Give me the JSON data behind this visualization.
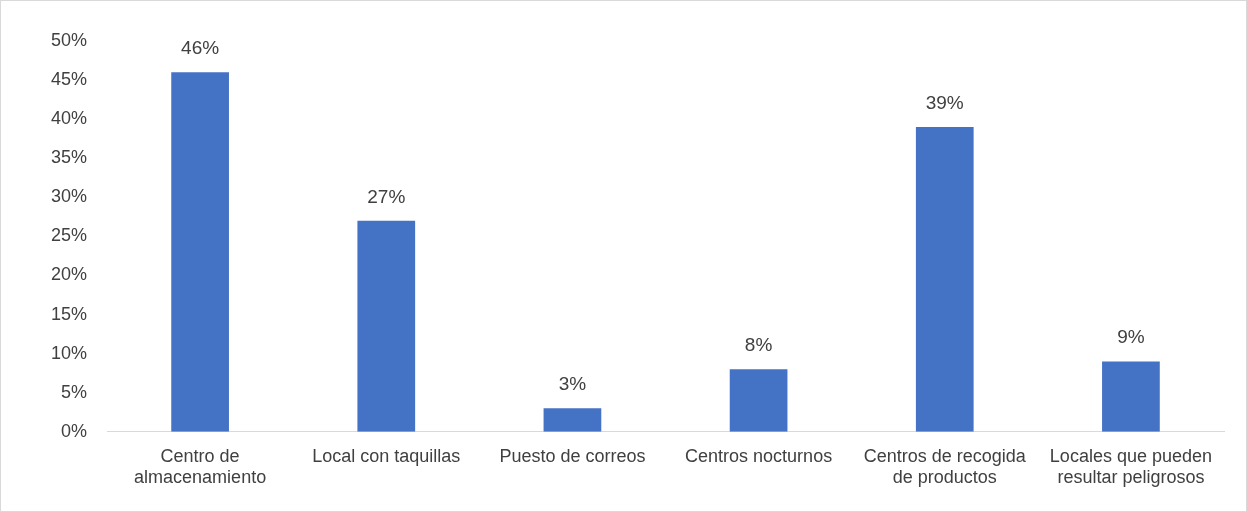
{
  "chart_data": {
    "type": "bar",
    "categories": [
      "Centro de almacenamiento",
      "Local con taquillas",
      "Puesto de correos",
      "Centros nocturnos",
      "Centros de recogida de productos",
      "Locales que pueden resultar peligrosos"
    ],
    "values": [
      46,
      27,
      3,
      8,
      39,
      9
    ],
    "color": "#4472c4",
    "ylim": [
      0,
      50
    ],
    "yticks": [
      {
        "value": 0,
        "label": "0%"
      },
      {
        "value": 5,
        "label": "5%"
      },
      {
        "value": 10,
        "label": "10%"
      },
      {
        "value": 15,
        "label": "15%"
      },
      {
        "value": 20,
        "label": "20%"
      },
      {
        "value": 25,
        "label": "25%"
      },
      {
        "value": 30,
        "label": "30%"
      },
      {
        "value": 35,
        "label": "35%"
      },
      {
        "value": 40,
        "label": "40%"
      },
      {
        "value": 45,
        "label": "45%"
      },
      {
        "value": 50,
        "label": "50%"
      }
    ],
    "value_labels": [
      "46%",
      "27%",
      "3%",
      "8%",
      "39%",
      "9%"
    ],
    "grid": false,
    "legend": false
  }
}
